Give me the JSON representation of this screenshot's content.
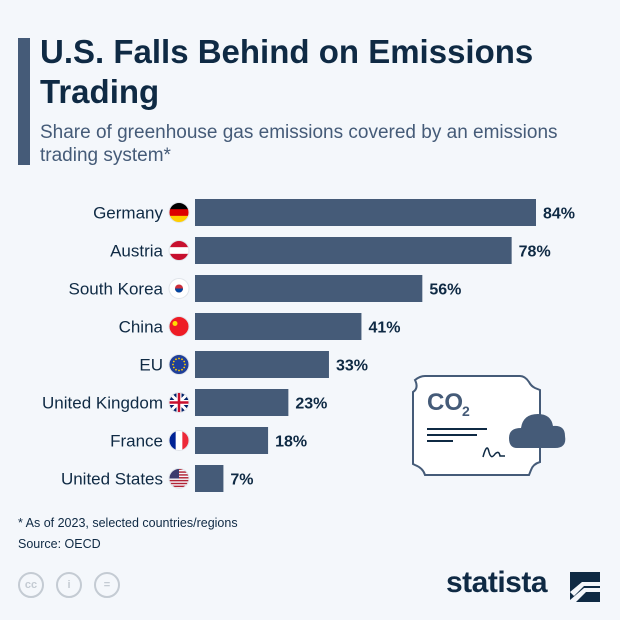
{
  "header": {
    "title": "U.S. Falls Behind on Emissions Trading",
    "subtitle": "Share of greenhouse gas emissions covered by an emissions trading system*"
  },
  "chart_data": {
    "type": "bar",
    "orientation": "horizontal",
    "categories": [
      "Germany",
      "Austria",
      "South Korea",
      "China",
      "EU",
      "United Kingdom",
      "France",
      "United States"
    ],
    "values": [
      84,
      78,
      56,
      41,
      33,
      23,
      18,
      7
    ],
    "data_labels": [
      "84%",
      "78%",
      "56%",
      "41%",
      "33%",
      "23%",
      "18%",
      "7%"
    ],
    "flag_icons": [
      "germany-flag-icon",
      "austria-flag-icon",
      "south-korea-flag-icon",
      "china-flag-icon",
      "eu-flag-icon",
      "uk-flag-icon",
      "france-flag-icon",
      "us-flag-icon"
    ],
    "unit": "%",
    "xlim": [
      0,
      100
    ],
    "grid": false,
    "bar_color": "#455b78"
  },
  "illustration": {
    "co2_label": "CO",
    "co2_sub": "2"
  },
  "footer": {
    "note": "* As of 2023, selected countries/regions",
    "source": "Source: OECD",
    "brand": "statista"
  },
  "colors": {
    "title": "#0f2a44",
    "accent": "#455b78",
    "background": "#f4f7fb"
  }
}
